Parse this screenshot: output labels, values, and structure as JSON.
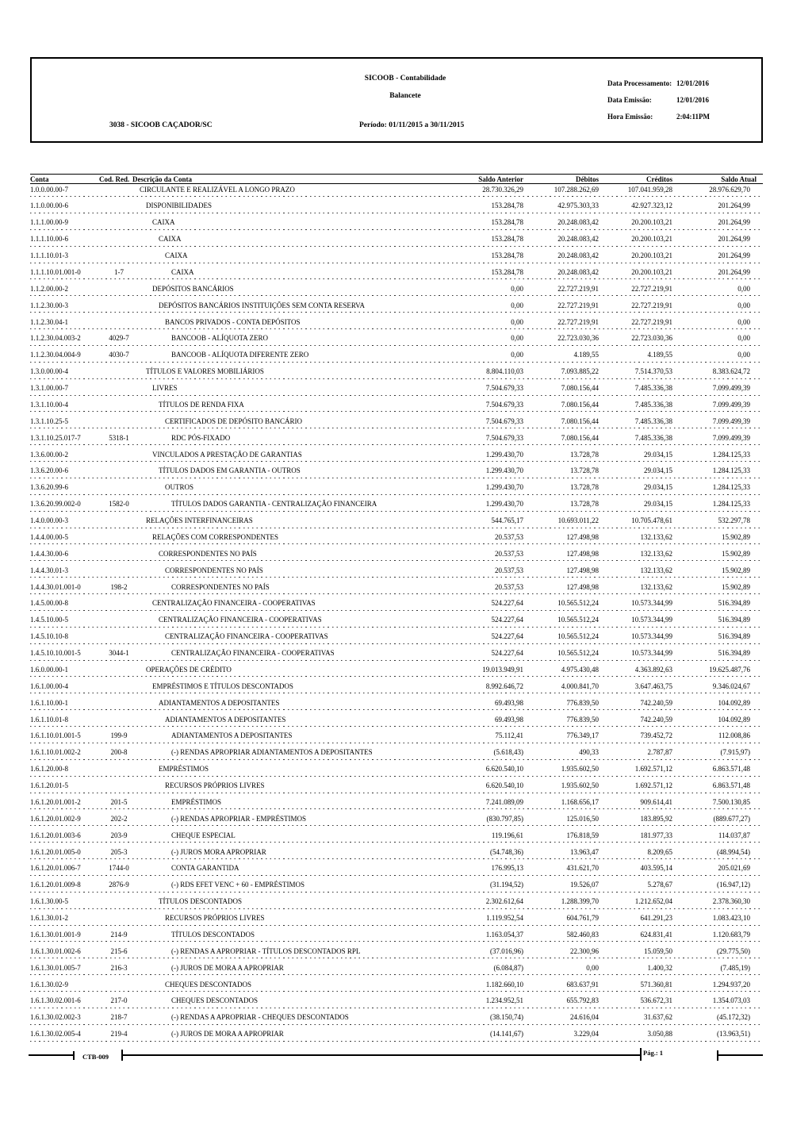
{
  "colors": {
    "text": "#000000",
    "background": "#ffffff"
  },
  "header": {
    "title": "SICOOB - Contabilidade",
    "subtitle": "Balancete",
    "cooperative": "3038 - SICOOB CAÇADOR/SC",
    "period": "Período: 01/11/2015 a 30/11/2015",
    "meta": [
      {
        "label": "Data Processamento:",
        "value": "12/01/2016"
      },
      {
        "label": "Data Emissão:",
        "value": "12/01/2016"
      },
      {
        "label": "Hora Emissão:",
        "value": "2:04:11PM"
      }
    ]
  },
  "table": {
    "columns": [
      "Conta",
      "Cod. Red.",
      "Descrição da Conta",
      "Saldo Anterior",
      "Débitos",
      "Créditos",
      "Saldo Atual"
    ],
    "rows": [
      {
        "conta": "1.0.0.00.00-7",
        "cod_red": "",
        "descricao": "CIRCULANTE E REALIZÁVEL A LONGO PRAZO",
        "indent": 0,
        "saldo_anterior": "28.730.326,29",
        "debitos": "107.288.262,69",
        "creditos": "107.041.959,28",
        "saldo_atual": "28.976.629,70"
      },
      {
        "conta": "1.1.0.00.00-6",
        "cod_red": "",
        "descricao": "DISPONIBILIDADES",
        "indent": 1,
        "saldo_anterior": "153.284,78",
        "debitos": "42.975.303,33",
        "creditos": "42.927.323,12",
        "saldo_atual": "201.264,99"
      },
      {
        "conta": "1.1.1.00.00-9",
        "cod_red": "",
        "descricao": "CAIXA",
        "indent": 2,
        "saldo_anterior": "153.284,78",
        "debitos": "20.248.083,42",
        "creditos": "20.200.103,21",
        "saldo_atual": "201.264,99"
      },
      {
        "conta": "1.1.1.10.00-6",
        "cod_red": "",
        "descricao": "CAIXA",
        "indent": 3,
        "saldo_anterior": "153.284,78",
        "debitos": "20.248.083,42",
        "creditos": "20.200.103,21",
        "saldo_atual": "201.264,99"
      },
      {
        "conta": "1.1.1.10.01-3",
        "cod_red": "",
        "descricao": "CAIXA",
        "indent": 4,
        "saldo_anterior": "153.284,78",
        "debitos": "20.248.083,42",
        "creditos": "20.200.103,21",
        "saldo_atual": "201.264,99"
      },
      {
        "conta": "1.1.1.10.01.001-0",
        "cod_red": "1-7",
        "descricao": "CAIXA",
        "indent": 5,
        "saldo_anterior": "153.284,78",
        "debitos": "20.248.083,42",
        "creditos": "20.200.103,21",
        "saldo_atual": "201.264,99"
      },
      {
        "conta": "1.1.2.00.00-2",
        "cod_red": "",
        "descricao": "DEPÓSITOS BANCÁRIOS",
        "indent": 2,
        "saldo_anterior": "0,00",
        "debitos": "22.727.219,91",
        "creditos": "22.727.219,91",
        "saldo_atual": "0,00"
      },
      {
        "conta": "1.1.2.30.00-3",
        "cod_red": "",
        "descricao": "DEPÓSITOS BANCÁRIOS INSTITUIÇÕES SEM CONTA RESERVA",
        "indent": 3,
        "saldo_anterior": "0,00",
        "debitos": "22.727.219,91",
        "creditos": "22.727.219,91",
        "saldo_atual": "0,00"
      },
      {
        "conta": "1.1.2.30.04-1",
        "cod_red": "",
        "descricao": "BANCOS PRIVADOS - CONTA DEPÓSITOS",
        "indent": 4,
        "saldo_anterior": "0,00",
        "debitos": "22.727.219,91",
        "creditos": "22.727.219,91",
        "saldo_atual": "0,00"
      },
      {
        "conta": "1.1.2.30.04.003-2",
        "cod_red": "4029-7",
        "descricao": "BANCOOB - ALÍQUOTA ZERO",
        "indent": 5,
        "saldo_anterior": "0,00",
        "debitos": "22.723.030,36",
        "creditos": "22.723.030,36",
        "saldo_atual": "0,00"
      },
      {
        "conta": "1.1.2.30.04.004-9",
        "cod_red": "4030-7",
        "descricao": "BANCOOB - ALÍQUOTA DIFERENTE ZERO",
        "indent": 5,
        "saldo_anterior": "0,00",
        "debitos": "4.189,55",
        "creditos": "4.189,55",
        "saldo_atual": "0,00"
      },
      {
        "conta": "1.3.0.00.00-4",
        "cod_red": "",
        "descricao": "TÍTULOS E VALORES MOBILIÁRIOS",
        "indent": 1,
        "saldo_anterior": "8.804.110,03",
        "debitos": "7.093.885,22",
        "creditos": "7.514.370,53",
        "saldo_atual": "8.383.624,72"
      },
      {
        "conta": "1.3.1.00.00-7",
        "cod_red": "",
        "descricao": "LIVRES",
        "indent": 2,
        "saldo_anterior": "7.504.679,33",
        "debitos": "7.080.156,44",
        "creditos": "7.485.336,38",
        "saldo_atual": "7.099.499,39"
      },
      {
        "conta": "1.3.1.10.00-4",
        "cod_red": "",
        "descricao": "TÍTULOS DE RENDA FIXA",
        "indent": 3,
        "saldo_anterior": "7.504.679,33",
        "debitos": "7.080.156,44",
        "creditos": "7.485.336,38",
        "saldo_atual": "7.099.499,39"
      },
      {
        "conta": "1.3.1.10.25-5",
        "cod_red": "",
        "descricao": "CERTIFICADOS DE DEPÓSITO BANCÁRIO",
        "indent": 4,
        "saldo_anterior": "7.504.679,33",
        "debitos": "7.080.156,44",
        "creditos": "7.485.336,38",
        "saldo_atual": "7.099.499,39"
      },
      {
        "conta": "1.3.1.10.25.017-7",
        "cod_red": "5318-1",
        "descricao": "RDC PÓS-FIXADO",
        "indent": 5,
        "saldo_anterior": "7.504.679,33",
        "debitos": "7.080.156,44",
        "creditos": "7.485.336,38",
        "saldo_atual": "7.099.499,39"
      },
      {
        "conta": "1.3.6.00.00-2",
        "cod_red": "",
        "descricao": "VINCULADOS A PRESTAÇÃO DE GARANTIAS",
        "indent": 2,
        "saldo_anterior": "1.299.430,70",
        "debitos": "13.728,78",
        "creditos": "29.034,15",
        "saldo_atual": "1.284.125,33"
      },
      {
        "conta": "1.3.6.20.00-6",
        "cod_red": "",
        "descricao": "TÍTULOS DADOS EM GARANTIA - OUTROS",
        "indent": 3,
        "saldo_anterior": "1.299.430,70",
        "debitos": "13.728,78",
        "creditos": "29.034,15",
        "saldo_atual": "1.284.125,33"
      },
      {
        "conta": "1.3.6.20.99-6",
        "cod_red": "",
        "descricao": "OUTROS",
        "indent": 4,
        "saldo_anterior": "1.299.430,70",
        "debitos": "13.728,78",
        "creditos": "29.034,15",
        "saldo_atual": "1.284.125,33"
      },
      {
        "conta": "1.3.6.20.99.002-0",
        "cod_red": "1582-0",
        "descricao": "TÍTULOS DADOS GARANTIA - CENTRALIZAÇÃO FINANCEIRA",
        "indent": 5,
        "saldo_anterior": "1.299.430,70",
        "debitos": "13.728,78",
        "creditos": "29.034,15",
        "saldo_atual": "1.284.125,33"
      },
      {
        "conta": "1.4.0.00.00-3",
        "cod_red": "",
        "descricao": "RELAÇÕES INTERFINANCEIRAS",
        "indent": 1,
        "saldo_anterior": "544.765,17",
        "debitos": "10.693.011,22",
        "creditos": "10.705.478,61",
        "saldo_atual": "532.297,78"
      },
      {
        "conta": "1.4.4.00.00-5",
        "cod_red": "",
        "descricao": "RELAÇÕES COM CORRESPONDENTES",
        "indent": 2,
        "saldo_anterior": "20.537,53",
        "debitos": "127.498,98",
        "creditos": "132.133,62",
        "saldo_atual": "15.902,89"
      },
      {
        "conta": "1.4.4.30.00-6",
        "cod_red": "",
        "descricao": "CORRESPONDENTES NO PAÍS",
        "indent": 3,
        "saldo_anterior": "20.537,53",
        "debitos": "127.498,98",
        "creditos": "132.133,62",
        "saldo_atual": "15.902,89"
      },
      {
        "conta": "1.4.4.30.01-3",
        "cod_red": "",
        "descricao": "CORRESPONDENTES NO PAÍS",
        "indent": 4,
        "saldo_anterior": "20.537,53",
        "debitos": "127.498,98",
        "creditos": "132.133,62",
        "saldo_atual": "15.902,89"
      },
      {
        "conta": "1.4.4.30.01.001-0",
        "cod_red": "198-2",
        "descricao": "CORRESPONDENTES NO PAÍS",
        "indent": 5,
        "saldo_anterior": "20.537,53",
        "debitos": "127.498,98",
        "creditos": "132.133,62",
        "saldo_atual": "15.902,89"
      },
      {
        "conta": "1.4.5.00.00-8",
        "cod_red": "",
        "descricao": "CENTRALIZAÇÃO FINANCEIRA - COOPERATIVAS",
        "indent": 2,
        "saldo_anterior": "524.227,64",
        "debitos": "10.565.512,24",
        "creditos": "10.573.344,99",
        "saldo_atual": "516.394,89"
      },
      {
        "conta": "1.4.5.10.00-5",
        "cod_red": "",
        "descricao": "CENTRALIZAÇÃO FINANCEIRA - COOPERATIVAS",
        "indent": 3,
        "saldo_anterior": "524.227,64",
        "debitos": "10.565.512,24",
        "creditos": "10.573.344,99",
        "saldo_atual": "516.394,89"
      },
      {
        "conta": "1.4.5.10.10-8",
        "cod_red": "",
        "descricao": "CENTRALIZAÇÃO FINANCEIRA - COOPERATIVAS",
        "indent": 4,
        "saldo_anterior": "524.227,64",
        "debitos": "10.565.512,24",
        "creditos": "10.573.344,99",
        "saldo_atual": "516.394,89"
      },
      {
        "conta": "1.4.5.10.10.001-5",
        "cod_red": "3044-1",
        "descricao": "CENTRALIZAÇÃO FINANCEIRA - COOPERATIVAS",
        "indent": 5,
        "saldo_anterior": "524.227,64",
        "debitos": "10.565.512,24",
        "creditos": "10.573.344,99",
        "saldo_atual": "516.394,89"
      },
      {
        "conta": "1.6.0.00.00-1",
        "cod_red": "",
        "descricao": "OPERAÇÕES DE CRÉDITO",
        "indent": 1,
        "saldo_anterior": "19.013.949,91",
        "debitos": "4.975.430,48",
        "creditos": "4.363.892,63",
        "saldo_atual": "19.625.487,76"
      },
      {
        "conta": "1.6.1.00.00-4",
        "cod_red": "",
        "descricao": "EMPRÉSTIMOS E TÍTULOS DESCONTADOS",
        "indent": 2,
        "saldo_anterior": "8.992.646,72",
        "debitos": "4.000.841,70",
        "creditos": "3.647.463,75",
        "saldo_atual": "9.346.024,67"
      },
      {
        "conta": "1.6.1.10.00-1",
        "cod_red": "",
        "descricao": "ADIANTAMENTOS A DEPOSITANTES",
        "indent": 3,
        "saldo_anterior": "69.493,98",
        "debitos": "776.839,50",
        "creditos": "742.240,59",
        "saldo_atual": "104.092,89"
      },
      {
        "conta": "1.6.1.10.01-8",
        "cod_red": "",
        "descricao": "ADIANTAMENTOS A DEPOSITANTES",
        "indent": 4,
        "saldo_anterior": "69.493,98",
        "debitos": "776.839,50",
        "creditos": "742.240,59",
        "saldo_atual": "104.092,89"
      },
      {
        "conta": "1.6.1.10.01.001-5",
        "cod_red": "199-9",
        "descricao": "ADIANTAMENTOS A DEPOSITANTES",
        "indent": 5,
        "saldo_anterior": "75.112,41",
        "debitos": "776.349,17",
        "creditos": "739.452,72",
        "saldo_atual": "112.008,86"
      },
      {
        "conta": "1.6.1.10.01.002-2",
        "cod_red": "200-8",
        "descricao": "(-) RENDAS APROPRIAR ADIANTAMENTOS A DEPOSITANTES",
        "indent": 5,
        "saldo_anterior": "(5.618,43)",
        "debitos": "490,33",
        "creditos": "2.787,87",
        "saldo_atual": "(7.915,97)"
      },
      {
        "conta": "1.6.1.20.00-8",
        "cod_red": "",
        "descricao": "EMPRÉSTIMOS",
        "indent": 3,
        "saldo_anterior": "6.620.540,10",
        "debitos": "1.935.602,50",
        "creditos": "1.692.571,12",
        "saldo_atual": "6.863.571,48"
      },
      {
        "conta": "1.6.1.20.01-5",
        "cod_red": "",
        "descricao": "RECURSOS PRÓPRIOS LIVRES",
        "indent": 4,
        "saldo_anterior": "6.620.540,10",
        "debitos": "1.935.602,50",
        "creditos": "1.692.571,12",
        "saldo_atual": "6.863.571,48"
      },
      {
        "conta": "1.6.1.20.01.001-2",
        "cod_red": "201-5",
        "descricao": "EMPRÉSTIMOS",
        "indent": 5,
        "saldo_anterior": "7.241.089,09",
        "debitos": "1.168.656,17",
        "creditos": "909.614,41",
        "saldo_atual": "7.500.130,85"
      },
      {
        "conta": "1.6.1.20.01.002-9",
        "cod_red": "202-2",
        "descricao": "(-) RENDAS APROPRIAR - EMPRÉSTIMOS",
        "indent": 5,
        "saldo_anterior": "(830.797,85)",
        "debitos": "125.016,50",
        "creditos": "183.895,92",
        "saldo_atual": "(889.677,27)"
      },
      {
        "conta": "1.6.1.20.01.003-6",
        "cod_red": "203-9",
        "descricao": "CHEQUE ESPECIAL",
        "indent": 5,
        "saldo_anterior": "119.196,61",
        "debitos": "176.818,59",
        "creditos": "181.977,33",
        "saldo_atual": "114.037,87"
      },
      {
        "conta": "1.6.1.20.01.005-0",
        "cod_red": "205-3",
        "descricao": "(-) JUROS MORA APROPRIAR",
        "indent": 5,
        "saldo_anterior": "(54.748,36)",
        "debitos": "13.963,47",
        "creditos": "8.209,65",
        "saldo_atual": "(48.994,54)"
      },
      {
        "conta": "1.6.1.20.01.006-7",
        "cod_red": "1744-0",
        "descricao": "CONTA GARANTIDA",
        "indent": 5,
        "saldo_anterior": "176.995,13",
        "debitos": "431.621,70",
        "creditos": "403.595,14",
        "saldo_atual": "205.021,69"
      },
      {
        "conta": "1.6.1.20.01.009-8",
        "cod_red": "2876-9",
        "descricao": "(-) RDS EFET VENC + 60 - EMPRÉSTIMOS",
        "indent": 5,
        "saldo_anterior": "(31.194,52)",
        "debitos": "19.526,07",
        "creditos": "5.278,67",
        "saldo_atual": "(16.947,12)"
      },
      {
        "conta": "1.6.1.30.00-5",
        "cod_red": "",
        "descricao": "TÍTULOS DESCONTADOS",
        "indent": 3,
        "saldo_anterior": "2.302.612,64",
        "debitos": "1.288.399,70",
        "creditos": "1.212.652,04",
        "saldo_atual": "2.378.360,30"
      },
      {
        "conta": "1.6.1.30.01-2",
        "cod_red": "",
        "descricao": "RECURSOS PRÓPRIOS LIVRES",
        "indent": 4,
        "saldo_anterior": "1.119.952,54",
        "debitos": "604.761,79",
        "creditos": "641.291,23",
        "saldo_atual": "1.083.423,10"
      },
      {
        "conta": "1.6.1.30.01.001-9",
        "cod_red": "214-9",
        "descricao": "TÍTULOS DESCONTADOS",
        "indent": 5,
        "saldo_anterior": "1.163.054,37",
        "debitos": "582.460,83",
        "creditos": "624.831,41",
        "saldo_atual": "1.120.683,79"
      },
      {
        "conta": "1.6.1.30.01.002-6",
        "cod_red": "215-6",
        "descricao": "(-) RENDAS A APROPRIAR - TÍTULOS DESCONTADOS RPL",
        "indent": 5,
        "saldo_anterior": "(37.016,96)",
        "debitos": "22.300,96",
        "creditos": "15.059,50",
        "saldo_atual": "(29.775,50)"
      },
      {
        "conta": "1.6.1.30.01.005-7",
        "cod_red": "216-3",
        "descricao": "(-) JUROS DE MORA A APROPRIAR",
        "indent": 5,
        "saldo_anterior": "(6.084,87)",
        "debitos": "0,00",
        "creditos": "1.400,32",
        "saldo_atual": "(7.485,19)"
      },
      {
        "conta": "1.6.1.30.02-9",
        "cod_red": "",
        "descricao": "CHEQUES DESCONTADOS",
        "indent": 4,
        "saldo_anterior": "1.182.660,10",
        "debitos": "683.637,91",
        "creditos": "571.360,81",
        "saldo_atual": "1.294.937,20"
      },
      {
        "conta": "1.6.1.30.02.001-6",
        "cod_red": "217-0",
        "descricao": "CHEQUES DESCONTADOS",
        "indent": 5,
        "saldo_anterior": "1.234.952,51",
        "debitos": "655.792,83",
        "creditos": "536.672,31",
        "saldo_atual": "1.354.073,03"
      },
      {
        "conta": "1.6.1.30.02.002-3",
        "cod_red": "218-7",
        "descricao": "(-) RENDAS A APROPRIAR - CHEQUES DESCONTADOS",
        "indent": 5,
        "saldo_anterior": "(38.150,74)",
        "debitos": "24.616,04",
        "creditos": "31.637,62",
        "saldo_atual": "(45.172,32)"
      },
      {
        "conta": "1.6.1.30.02.005-4",
        "cod_red": "219-4",
        "descricao": "(-) JUROS DE MORA A APROPRIAR",
        "indent": 5,
        "saldo_anterior": "(14.141,67)",
        "debitos": "3.229,04",
        "creditos": "3.050,88",
        "saldo_atual": "(13.963,51)"
      }
    ]
  },
  "footer": {
    "report_code": "CTB-009",
    "page_label": "Pág.: 1"
  }
}
